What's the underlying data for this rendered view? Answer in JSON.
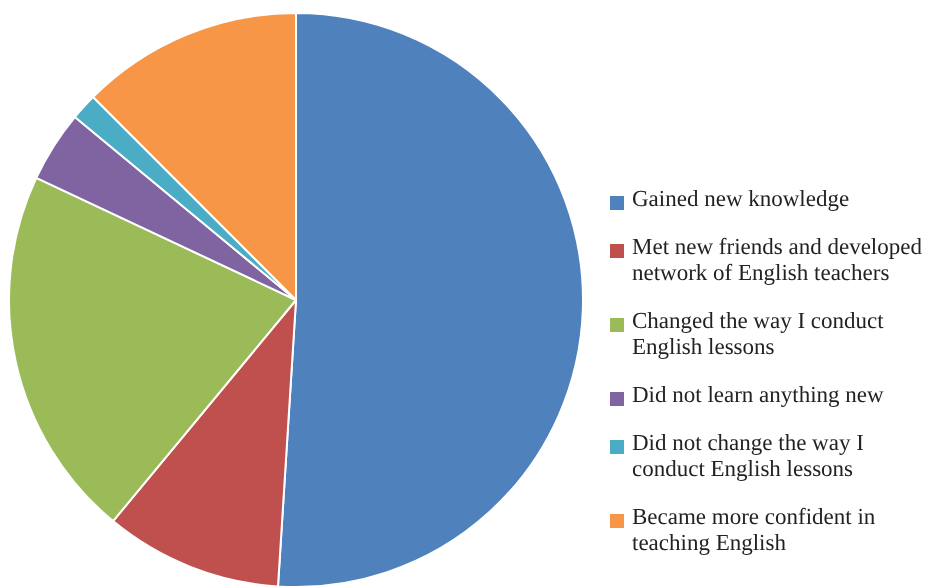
{
  "chart_data": {
    "type": "pie",
    "categories": [
      "Gained new knowledge",
      "Met new friends and developed network of English teachers",
      "Changed the way I conduct English lessons",
      "Did not learn anything new",
      "Did not change the way I conduct English lessons",
      "Became more confident in teaching English"
    ],
    "values": [
      51,
      10,
      21,
      4,
      1.5,
      12.5
    ],
    "colors": [
      "#4f81bd",
      "#c0504d",
      "#9bbb59",
      "#8064a2",
      "#4bacc6",
      "#f79646"
    ],
    "legend": "right"
  }
}
